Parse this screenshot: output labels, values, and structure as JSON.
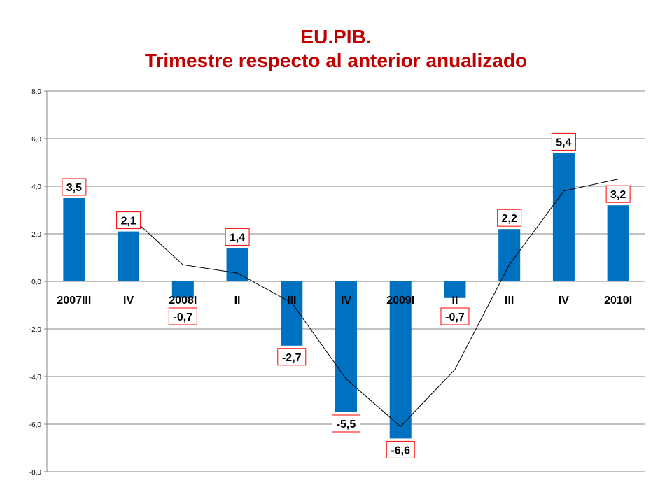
{
  "chart_data": {
    "type": "bar",
    "title": "EU.PIB.",
    "subtitle": "Trimestre respecto al anterior anualizado",
    "categories": [
      "2007III",
      "IV",
      "2008I",
      "II",
      "III",
      "IV",
      "2009I",
      "II",
      "III",
      "IV",
      "2010I"
    ],
    "series": [
      {
        "type": "bar",
        "color": "#0070c0",
        "values": [
          3.5,
          2.1,
          -0.7,
          1.4,
          -2.7,
          -5.5,
          -6.6,
          -0.7,
          2.2,
          5.4,
          3.2
        ],
        "labels": [
          "3,5",
          "2,1",
          "-0,7",
          "1,4",
          "-2,7",
          "-5,5",
          "-6,6",
          "-0,7",
          "2,2",
          "5,4",
          "3,2"
        ]
      },
      {
        "type": "line",
        "color": "#000000",
        "values": [
          null,
          2.8,
          0.7,
          0.35,
          -0.9,
          -4.1,
          -6.1,
          -3.7,
          0.7,
          3.8,
          4.3
        ]
      }
    ],
    "y_ticks": [
      "8,0",
      "6,0",
      "4,0",
      "2,0",
      "0,0",
      "-2,0",
      "-4,0",
      "-6,0",
      "-8,0"
    ],
    "ylim": [
      -8,
      8
    ],
    "grid": true,
    "label_border_color": "#ff0000"
  }
}
